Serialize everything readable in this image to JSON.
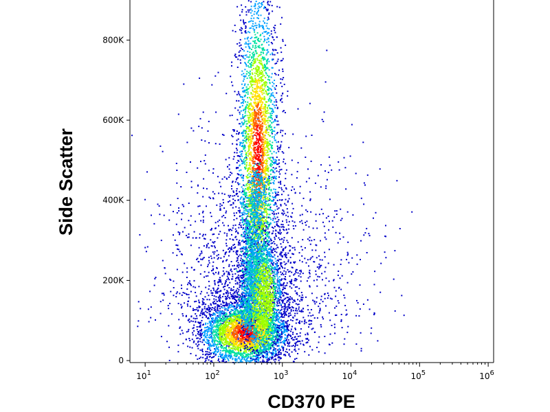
{
  "chart_data": {
    "type": "scatter",
    "xlabel": "CD370 PE",
    "ylabel": "Side Scatter",
    "x_scale": "log",
    "xlim": [
      6,
      1200000
    ],
    "ylim": [
      -5000,
      900000
    ],
    "x_ticks": [
      {
        "base": "10",
        "exp": "1",
        "value": 10
      },
      {
        "base": "10",
        "exp": "2",
        "value": 100
      },
      {
        "base": "10",
        "exp": "3",
        "value": 1000
      },
      {
        "base": "10",
        "exp": "4",
        "value": 10000
      },
      {
        "base": "10",
        "exp": "5",
        "value": 100000
      },
      {
        "base": "10",
        "exp": "6",
        "value": 1000000
      }
    ],
    "y_ticks": [
      {
        "label": "0",
        "value": 0
      },
      {
        "label": "200K",
        "value": 200000
      },
      {
        "label": "400K",
        "value": 400000
      },
      {
        "label": "600K",
        "value": 600000
      },
      {
        "label": "800K",
        "value": 800000
      }
    ],
    "density_colormap": [
      "#0000c8",
      "#00a0ff",
      "#00e0a0",
      "#a0ff00",
      "#ffe000",
      "#ff6000",
      "#ff0000"
    ],
    "populations": [
      {
        "x_center": 280,
        "y_center": 70000,
        "x_spread_decades": 0.18,
        "y_spread": 25000,
        "peak_density": "high"
      },
      {
        "x_center": 430,
        "y_center": 520000,
        "x_spread_decades": 0.08,
        "y_spread": 130000,
        "peak_density": "high"
      },
      {
        "x_center": 500,
        "y_center": 160000,
        "x_spread_decades": 0.08,
        "y_spread": 45000,
        "peak_density": "medium"
      }
    ],
    "grid": false
  }
}
